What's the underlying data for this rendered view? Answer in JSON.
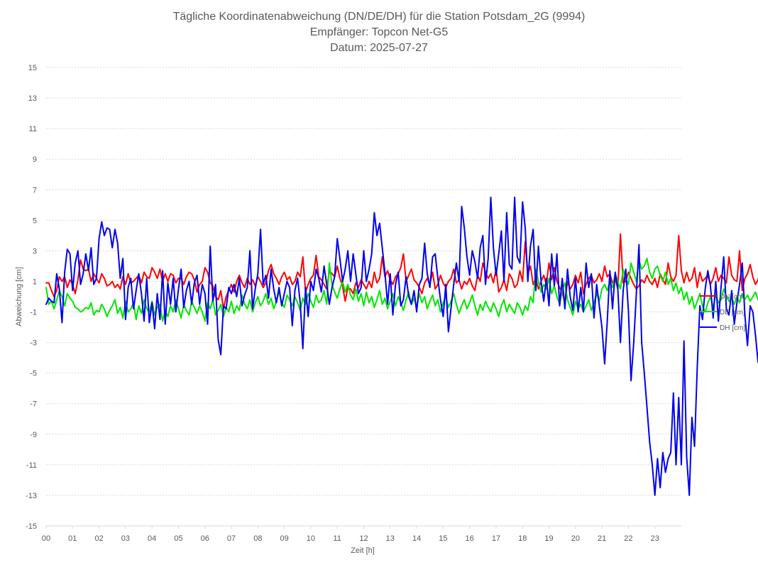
{
  "chart_data": {
    "type": "line",
    "title_lines": [
      "Tägliche Koordinatenabweichung (DN/DE/DH) für die Station Potsdam_2G (9994)",
      "Empfänger: Topcon Net-G5",
      "Datum: 2025-07-27"
    ],
    "xlabel": "Zeit [h]",
    "ylabel": "Abweichung [cm]",
    "ylim": [
      -15,
      15
    ],
    "xlim": [
      0,
      24
    ],
    "yticks": [
      15,
      13,
      11,
      9,
      7,
      5,
      3,
      1,
      -1,
      -3,
      -5,
      -7,
      -9,
      -11,
      -13,
      -15
    ],
    "xticks": [
      "00",
      "01",
      "02",
      "03",
      "04",
      "05",
      "06",
      "07",
      "08",
      "09",
      "10",
      "11",
      "12",
      "13",
      "14",
      "15",
      "16",
      "17",
      "18",
      "19",
      "20",
      "21",
      "22",
      "23"
    ],
    "grid": "horizontal dotted",
    "legend_position": "right",
    "x_step_hours": 0.1,
    "series": [
      {
        "name": "DN [cm]",
        "color": "#ff0000",
        "values": [
          0.9,
          0.9,
          0.4,
          0.0,
          0.4,
          1.3,
          1.0,
          1.3,
          0.6,
          1.1,
          0.8,
          0.2,
          1.1,
          2.4,
          1.8,
          1.7,
          1.8,
          1.0,
          1.5,
          1.2,
          0.9,
          1.5,
          1.2,
          0.7,
          0.8,
          1.0,
          0.6,
          0.8,
          0.5,
          1.3,
          0.8,
          1.5,
          0.9,
          1.0,
          1.2,
          1.4,
          0.9,
          1.6,
          1.3,
          1.2,
          1.9,
          1.6,
          1.2,
          1.8,
          1.0,
          1.5,
          1.0,
          1.5,
          1.4,
          0.9,
          1.2,
          1.2,
          0.8,
          1.3,
          1.6,
          1.5,
          1.1,
          0.3,
          0.8,
          1.0,
          1.9,
          1.6,
          0.9,
          0.7,
          0.0,
          -0.2,
          0.4,
          -0.8,
          0.0,
          0.4,
          0.8,
          0.3,
          1.0,
          1.4,
          0.9,
          0.6,
          1.2,
          0.8,
          1.1,
          0.7,
          1.3,
          1.0,
          0.6,
          0.9,
          1.7,
          2.1,
          1.5,
          1.2,
          0.8,
          1.3,
          1.6,
          1.1,
          1.3,
          0.8,
          1.0,
          1.6,
          1.3,
          2.6,
          0.3,
          0.8,
          1.2,
          1.4,
          2.7,
          1.3,
          1.1,
          0.8,
          0.5,
          1.7,
          1.5,
          1.3,
          2.0,
          1.2,
          0.7,
          -0.3,
          0.6,
          0.5,
          0.2,
          0.9,
          0.6,
          1.1,
          0.8,
          0.5,
          1.0,
          0.6,
          1.6,
          0.9,
          1.2,
          2.6,
          1.3,
          1.7,
          1.1,
          0.8,
          1.3,
          1.5,
          1.9,
          2.8,
          1.0,
          1.4,
          1.8,
          1.1,
          0.9,
          0.6,
          0.2,
          0.9,
          1.2,
          0.8,
          1.6,
          0.5,
          0.8,
          1.4,
          0.9,
          0.6,
          1.0,
          1.2,
          1.8,
          0.9,
          1.1,
          0.5,
          1.0,
          0.8,
          1.2,
          0.7,
          0.4,
          1.4,
          1.0,
          2.2,
          1.6,
          1.2,
          1.5,
          0.9,
          1.8,
          0.3,
          0.6,
          1.1,
          0.4,
          1.5,
          1.2,
          0.6,
          0.8,
          1.7,
          1.0,
          3.6,
          1.5,
          2.0,
          0.8,
          1.2,
          0.5,
          1.0,
          1.4,
          0.8,
          2.2,
          1.1,
          1.9,
          1.0,
          0.6,
          0.3,
          -0.4,
          1.0,
          0.5,
          0.8,
          1.4,
          0.9,
          1.6,
          0.2,
          0.8,
          1.2,
          1.4,
          0.9,
          1.1,
          1.5,
          1.0,
          2.0,
          1.3,
          1.5,
          0.9,
          1.2,
          0.5,
          4.1,
          0.9,
          1.0,
          1.6,
          1.2,
          0.8,
          0.5,
          0.7,
          1.1,
          0.9,
          1.4,
          1.0,
          0.8,
          1.2,
          0.6,
          1.5,
          1.1,
          0.8,
          2.2,
          1.3,
          1.0,
          1.4,
          4.0,
          1.7,
          0.9,
          1.6,
          1.0,
          1.2,
          1.9,
          0.6,
          1.6,
          1.0,
          1.2,
          1.4,
          0.8,
          1.2,
          1.9,
          1.0,
          1.4,
          1.2,
          0.9,
          2.6,
          1.4,
          1.1,
          1.0,
          3.0,
          0.4,
          1.2,
          1.5,
          2.1,
          1.3,
          0.8,
          1.1,
          1.9,
          1.0,
          0.8,
          1.4,
          1.2,
          0.7,
          1.5,
          1.0,
          1.1,
          0.8,
          1.4,
          2.2,
          1.3,
          1.8,
          1.0,
          0.6,
          1.4,
          1.0,
          0.5,
          1.5,
          1.1,
          1.0
        ]
      },
      {
        "name": "DE [cm]",
        "color": "#00e600",
        "values": [
          0.6,
          -0.5,
          -0.3,
          -0.8,
          -0.2,
          0.4,
          0.0,
          -0.6,
          0.2,
          -0.1,
          -0.3,
          -0.7,
          -0.8,
          -1.0,
          -0.9,
          -0.7,
          -0.8,
          -0.4,
          -1.2,
          -0.9,
          -1.0,
          -0.5,
          -0.8,
          -1.3,
          -0.9,
          -0.6,
          -0.2,
          -1.1,
          -0.7,
          -1.4,
          -0.3,
          -1.0,
          -0.8,
          -0.4,
          -1.5,
          -0.6,
          -1.1,
          -0.2,
          -0.8,
          -1.0,
          -0.3,
          -1.2,
          -0.7,
          -0.5,
          -1.6,
          -0.9,
          -1.3,
          -0.6,
          -1.0,
          -0.2,
          -0.8,
          -1.4,
          -0.5,
          -0.9,
          -1.2,
          -0.3,
          -0.7,
          -1.1,
          -0.6,
          -1.0,
          -1.6,
          -0.4,
          -0.8,
          -0.2,
          -1.2,
          -0.9,
          -0.5,
          -1.3,
          -0.7,
          -1.0,
          -0.3,
          -1.1,
          -0.6,
          -0.9,
          0.1,
          -0.5,
          -0.8,
          -0.2,
          -1.0,
          -0.4,
          0.0,
          -0.6,
          -0.3,
          0.2,
          -0.5,
          -0.1,
          -0.8,
          -0.3,
          0.3,
          -0.4,
          -0.7,
          0.1,
          -0.2,
          -0.6,
          0.0,
          -0.4,
          -0.9,
          -0.1,
          -0.5,
          0.2,
          -0.3,
          -0.7,
          0.1,
          -0.4,
          -0.2,
          0.4,
          -0.5,
          2.2,
          0.8,
          0.3,
          -0.1,
          0.5,
          1.0,
          0.3,
          0.8,
          0.1,
          -0.2,
          0.5,
          -0.3,
          0.2,
          -0.6,
          0.3,
          -0.4,
          0.0,
          -0.7,
          -0.2,
          0.4,
          -0.5,
          -0.1,
          -0.8,
          -0.3,
          0.2,
          -0.6,
          0.0,
          -0.4,
          -0.9,
          -0.2,
          0.3,
          -0.5,
          -0.1,
          -0.7,
          0.2,
          -0.4,
          0.0,
          -0.8,
          -0.3,
          0.1,
          -0.6,
          -0.2,
          -1.0,
          -0.4,
          0.0,
          -0.7,
          -0.3,
          0.2,
          -0.5,
          -1.1,
          -0.6,
          -0.2,
          -0.8,
          -0.4,
          0.1,
          -0.6,
          -1.2,
          -0.5,
          -0.9,
          -0.3,
          -0.7,
          -1.0,
          -0.4,
          -0.8,
          -1.3,
          -0.6,
          -0.2,
          -1.0,
          -0.5,
          -0.8,
          -1.1,
          -0.4,
          -0.7,
          -1.2,
          -0.6,
          -0.9,
          0.0,
          -0.4,
          1.8,
          1.0,
          0.3,
          0.8,
          0.5,
          1.2,
          0.2,
          0.7,
          0.0,
          -0.5,
          0.4,
          0.9,
          -0.2,
          -0.7,
          -1.2,
          -0.3,
          -0.8,
          -0.5,
          -1.0,
          -0.6,
          -0.2,
          -0.9,
          -0.4,
          0.2,
          -0.3,
          0.5,
          0.8,
          0.4,
          1.0,
          0.6,
          1.5,
          1.0,
          0.5,
          1.8,
          1.2,
          0.8,
          2.2,
          1.6,
          1.0,
          2.4,
          1.8,
          2.0,
          2.5,
          1.6,
          1.2,
          1.8,
          2.0,
          1.4,
          1.0,
          1.6,
          0.8,
          1.2,
          0.4,
          0.9,
          0.2,
          0.6,
          -0.2,
          0.3,
          -0.5,
          0.0,
          -0.8,
          -0.3,
          0.2,
          -0.6,
          -1.0,
          -0.4,
          0.0,
          -0.7,
          0.1,
          -0.4,
          -0.2,
          0.5,
          0.0,
          -0.3,
          -0.1,
          -0.5,
          0.0,
          -0.4,
          0.2,
          -0.2,
          0.1,
          -0.3,
          0.0,
          0.3,
          -0.2,
          0.1,
          -0.4,
          0.0,
          -0.3,
          0.2,
          0.0,
          -0.2,
          0.0
        ]
      },
      {
        "name": "DH [cm]",
        "color": "#0000ee",
        "values": [
          -0.5,
          -0.1,
          -0.3,
          -0.4,
          1.5,
          0.5,
          -1.7,
          1.6,
          3.1,
          2.8,
          0.4,
          2.2,
          3.0,
          0.8,
          1.5,
          2.8,
          1.7,
          3.2,
          0.8,
          1.2,
          3.8,
          4.9,
          4.0,
          4.5,
          4.4,
          3.2,
          4.4,
          3.5,
          1.2,
          2.5,
          -1.5,
          0.6,
          1.2,
          -0.8,
          0.4,
          1.5,
          0.2,
          -1.6,
          1.2,
          -1.7,
          -0.4,
          -2.1,
          0.2,
          -1.5,
          1.7,
          -1.8,
          0.9,
          -0.5,
          1.2,
          -1.0,
          0.5,
          1.8,
          -0.7,
          0.4,
          1.0,
          -0.5,
          0.9,
          1.4,
          -0.5,
          0.8,
          0.2,
          -1.8,
          3.3,
          -0.3,
          0.8,
          -2.8,
          -3.8,
          -0.6,
          -0.8,
          0.6,
          0.2,
          0.8,
          0.0,
          1.2,
          -0.6,
          0.1,
          0.6,
          3.0,
          -0.8,
          0.5,
          1.5,
          4.4,
          0.8,
          1.4,
          -0.1,
          1.8,
          0.5,
          -0.4,
          0.6,
          -0.6,
          0.2,
          1.0,
          0.6,
          -1.9,
          0.4,
          1.2,
          -0.4,
          -3.4,
          0.6,
          -1.3,
          1.0,
          0.4,
          1.8,
          1.2,
          0.3,
          2.0,
          0.8,
          -0.5,
          0.6,
          1.3,
          3.8,
          2.5,
          1.0,
          1.8,
          3.0,
          1.0,
          2.8,
          1.5,
          0.2,
          0.6,
          3.0,
          1.0,
          1.8,
          2.8,
          5.5,
          4.0,
          4.8,
          3.2,
          1.6,
          -0.5,
          1.5,
          -1.2,
          0.8,
          1.6,
          -0.6,
          -0.2,
          1.3,
          0.0,
          -0.5,
          0.4,
          -1.0,
          0.8,
          1.2,
          3.5,
          1.5,
          0.6,
          2.6,
          2.8,
          1.2,
          -0.2,
          -1.3,
          0.8,
          -2.3,
          -0.7,
          0.8,
          2.2,
          1.0,
          5.9,
          4.5,
          2.6,
          1.4,
          3.0,
          2.3,
          1.2,
          3.2,
          4.0,
          0.8,
          2.5,
          6.5,
          3.2,
          1.4,
          2.8,
          4.3,
          1.0,
          5.5,
          2.1,
          1.8,
          6.5,
          2.6,
          2.2,
          6.2,
          4.5,
          1.0,
          3.3,
          4.4,
          0.4,
          3.3,
          1.0,
          -0.3,
          1.2,
          -0.6,
          2.8,
          0.7,
          2.8,
          -0.6,
          1.2,
          -0.8,
          1.8,
          0.0,
          -0.9,
          1.2,
          -1.0,
          0.6,
          -1.0,
          2.2,
          0.6,
          1.5,
          -1.4,
          0.8,
          -0.6,
          -2.0,
          -4.4,
          -1.6,
          1.7,
          -0.8,
          1.6,
          0.5,
          -3.0,
          0.4,
          1.8,
          -0.9,
          -5.5,
          -3.0,
          0.2,
          3.4,
          -3.0,
          -5.0,
          -7.2,
          -9.5,
          -11.0,
          -13.0,
          -10.6,
          -12.5,
          -10.2,
          -11.5,
          -10.6,
          -10.2,
          -6.3,
          -11.0,
          -6.6,
          -11.0,
          -2.9,
          -10.5,
          -13.0,
          -7.9,
          -9.8,
          -4.6,
          -0.6,
          -1.5,
          0.5,
          1.7,
          0.7,
          -1.4,
          1.0,
          -1.6,
          0.6,
          2.6,
          -0.8,
          -1.2,
          0.4,
          -1.8,
          -0.4,
          0.8,
          2.2,
          -1.2,
          -3.2,
          -0.6,
          -1.0,
          -2.5,
          -4.3,
          -1.8,
          -2.6,
          -0.6,
          1.3,
          0.5,
          3.0,
          0.4,
          -1.2,
          1.0,
          -2.0,
          -4.5,
          -2.8,
          0.5,
          0.9,
          -1.0
        ]
      }
    ]
  }
}
